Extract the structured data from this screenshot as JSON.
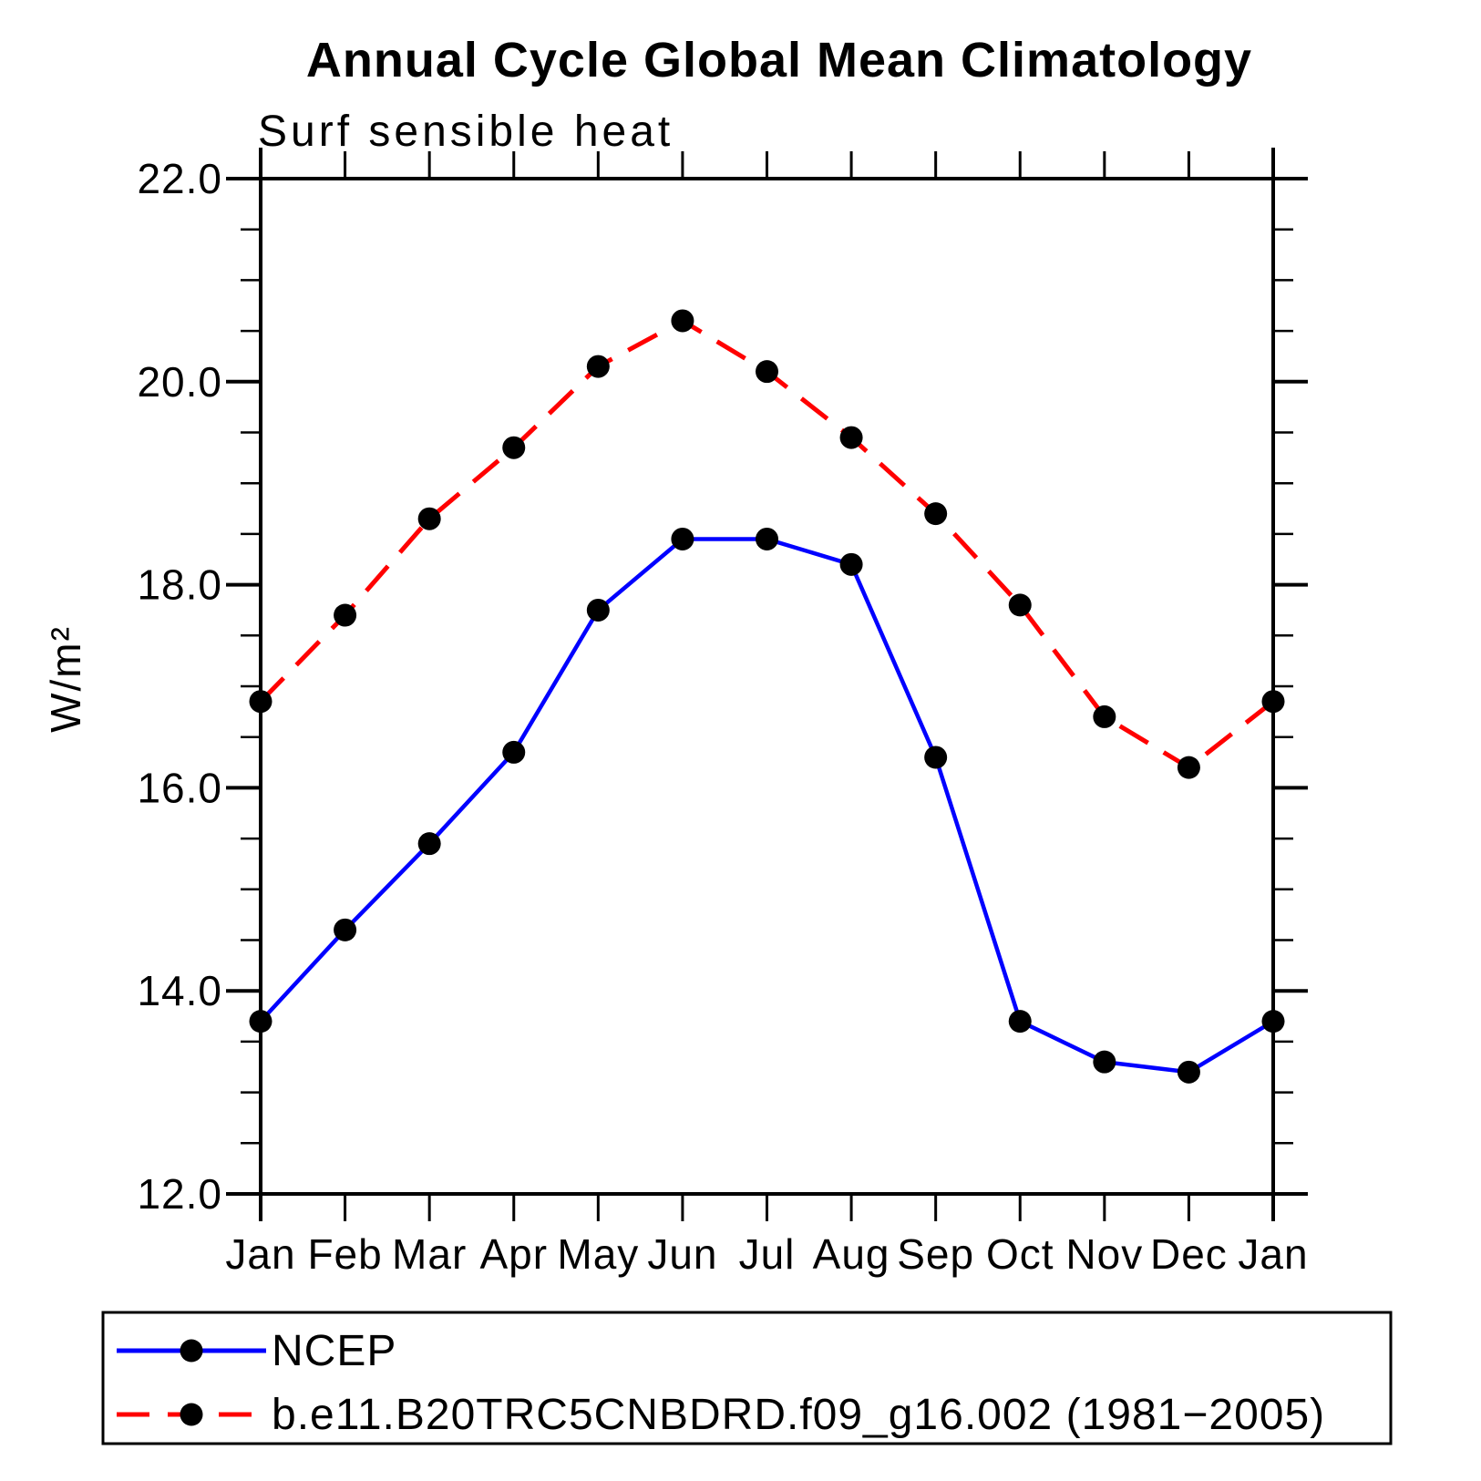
{
  "title": "Annual Cycle Global Mean Climatology",
  "subtitle": "Surf sensible heat",
  "chart_data": {
    "type": "line",
    "categories": [
      "Jan",
      "Feb",
      "Mar",
      "Apr",
      "May",
      "Jun",
      "Jul",
      "Aug",
      "Sep",
      "Oct",
      "Nov",
      "Dec",
      "Jan"
    ],
    "ylabel": "W/m²",
    "xlabel": "",
    "ylim": [
      12.0,
      22.0
    ],
    "ytick_major": [
      12.0,
      14.0,
      16.0,
      18.0,
      20.0,
      22.0
    ],
    "ytick_labels": [
      "12.0",
      "14.0",
      "16.0",
      "18.0",
      "20.0",
      "22.0"
    ],
    "ytick_minor_step": 0.5,
    "grid": false,
    "legend_position": "bottom-left-box",
    "series": [
      {
        "name": "NCEP",
        "style": "solid",
        "color": "#0000ff",
        "marker": "circle",
        "marker_color": "#000000",
        "values": [
          13.7,
          14.6,
          15.45,
          16.35,
          17.75,
          18.45,
          18.45,
          18.2,
          16.3,
          13.7,
          13.3,
          13.2,
          13.7
        ]
      },
      {
        "name": "b.e11.B20TRC5CNBDRD.f09_g16.002 (1981−2005)",
        "style": "dashed",
        "color": "#ff0000",
        "marker": "circle",
        "marker_color": "#000000",
        "values": [
          16.85,
          17.7,
          18.65,
          19.35,
          20.15,
          20.6,
          20.1,
          19.45,
          18.7,
          17.8,
          16.7,
          16.2,
          16.85
        ]
      }
    ]
  },
  "colors": {
    "background": "#ffffff",
    "axis": "#000000",
    "ncep_line": "#0000ff",
    "model_line": "#ff0000",
    "marker": "#000000"
  }
}
